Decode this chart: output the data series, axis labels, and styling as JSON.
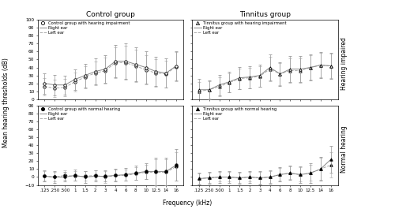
{
  "freqs": [
    0.125,
    0.25,
    0.5,
    1,
    1.5,
    2,
    3,
    4,
    6,
    8,
    10,
    12.5,
    14,
    16
  ],
  "freq_labels": [
    ".125",
    ".250",
    ".500",
    "1",
    "1.5",
    "2",
    "3",
    "4",
    "6",
    "8",
    "10",
    "12.5",
    "14",
    "16"
  ],
  "ctrl_hi_right_mean": [
    20,
    18,
    18,
    25,
    30,
    35,
    38,
    48,
    48,
    44,
    40,
    35,
    33,
    42
  ],
  "ctrl_hi_right_sd": [
    13,
    13,
    12,
    13,
    15,
    16,
    17,
    20,
    22,
    21,
    20,
    18,
    18,
    18
  ],
  "ctrl_hi_left_mean": [
    16,
    14,
    15,
    22,
    28,
    33,
    36,
    46,
    46,
    42,
    37,
    33,
    32,
    41
  ],
  "ctrl_hi_left_sd": [
    11,
    11,
    11,
    12,
    14,
    15,
    16,
    19,
    21,
    20,
    18,
    17,
    17,
    18
  ],
  "tinn_hi_right_mean": [
    12,
    12,
    18,
    22,
    27,
    28,
    30,
    40,
    32,
    38,
    38,
    40,
    43,
    42
  ],
  "tinn_hi_right_sd": [
    14,
    12,
    13,
    13,
    14,
    14,
    14,
    16,
    15,
    16,
    16,
    16,
    16,
    16
  ],
  "tinn_hi_left_mean": [
    10,
    12,
    16,
    21,
    26,
    27,
    29,
    38,
    32,
    36,
    36,
    40,
    43,
    42
  ],
  "tinn_hi_left_sd": [
    12,
    11,
    12,
    12,
    13,
    13,
    13,
    15,
    14,
    15,
    15,
    15,
    15,
    15
  ],
  "ctrl_nh_right_mean": [
    1,
    0,
    0,
    2,
    0,
    1,
    1,
    2,
    3,
    5,
    7,
    7,
    7,
    15
  ],
  "ctrl_nh_right_sd": [
    7,
    7,
    6,
    7,
    7,
    7,
    7,
    8,
    8,
    9,
    10,
    17,
    17,
    20
  ],
  "ctrl_nh_left_mean": [
    1,
    0,
    2,
    1,
    1,
    2,
    0,
    2,
    2,
    4,
    6,
    6,
    6,
    13
  ],
  "ctrl_nh_left_sd": [
    6,
    6,
    6,
    6,
    6,
    6,
    7,
    7,
    7,
    8,
    9,
    16,
    16,
    18
  ],
  "tinn_nh_right_mean": [
    -2,
    -1,
    0,
    0,
    -1,
    0,
    -1,
    0,
    3,
    5,
    3,
    5,
    10,
    22
  ],
  "tinn_nh_right_sd": [
    7,
    7,
    7,
    7,
    7,
    7,
    8,
    8,
    9,
    9,
    10,
    12,
    15,
    17
  ],
  "tinn_nh_left_mean": [
    -2,
    -1,
    0,
    0,
    -1,
    0,
    -1,
    0,
    3,
    5,
    3,
    5,
    10,
    15
  ],
  "tinn_nh_left_sd": [
    6,
    6,
    6,
    6,
    6,
    6,
    7,
    7,
    8,
    8,
    9,
    10,
    14,
    16
  ],
  "color_line": "#888888",
  "color_line_left": "#aaaaaa",
  "color_marker": "#000000",
  "color_err": "#999999",
  "color_err_left": "#bbbbbb",
  "title_control": "Control group",
  "title_tinnitus": "Tinnitus group",
  "ylabel": "Mean hearing thresholds (dB)",
  "xlabel": "Frequency (kHz)",
  "label_ctrl_hi": "Control group with hearing impairment",
  "label_tinn_hi": "Tinnitus group with hearing impairment",
  "label_ctrl_nh": "Control group with normal hearing",
  "label_tinn_nh": "Tinnitus group with normal hearing",
  "label_right": "Right ear",
  "label_left": "Left ear",
  "ylim_hi": [
    0,
    100
  ],
  "ylim_nh": [
    -10,
    90
  ],
  "yticks_hi": [
    0,
    10,
    20,
    30,
    40,
    50,
    60,
    70,
    80,
    90,
    100
  ],
  "yticks_nh": [
    -10,
    0,
    10,
    20,
    30,
    40,
    50,
    60,
    70,
    80,
    90
  ],
  "right_label_hi": "Hearing impaired",
  "right_label_nh": "Normal hearing"
}
